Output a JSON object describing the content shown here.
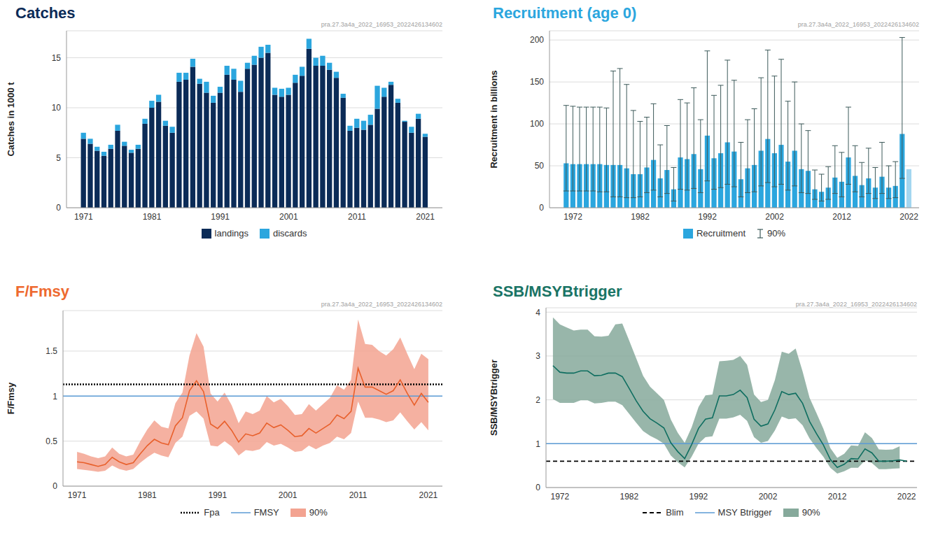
{
  "chart_data": [
    {
      "type": "bar",
      "title": "Catches",
      "subtitle": "pra.27.3a4a_2022_16953_2022426134602",
      "stacked": true,
      "grid": true,
      "legend": "bottom",
      "x": [
        1971,
        1972,
        1973,
        1974,
        1975,
        1976,
        1977,
        1978,
        1979,
        1980,
        1981,
        1982,
        1983,
        1984,
        1985,
        1986,
        1987,
        1988,
        1989,
        1990,
        1991,
        1992,
        1993,
        1994,
        1995,
        1996,
        1997,
        1998,
        1999,
        2000,
        2001,
        2002,
        2003,
        2004,
        2005,
        2006,
        2007,
        2008,
        2009,
        2010,
        2011,
        2012,
        2013,
        2014,
        2015,
        2016,
        2017,
        2018,
        2019,
        2020,
        2021
      ],
      "xlim": [
        1968.5,
        2023.5
      ],
      "xticks": [
        1971,
        1981,
        1991,
        2001,
        2011,
        2021
      ],
      "ylim": [
        0,
        17.7
      ],
      "yticks": [
        0,
        5,
        10,
        15
      ],
      "y_label": "Catches in 1000 t",
      "series": [
        {
          "name": "landings",
          "type": "bar",
          "color": "#0b2b57",
          "values": [
            6.9,
            6.4,
            5.7,
            5.2,
            5.9,
            7.7,
            6.2,
            5.5,
            5.9,
            8.4,
            10.0,
            10.6,
            8.2,
            7.5,
            12.6,
            12.8,
            14.1,
            12.4,
            11.5,
            10.5,
            11.5,
            13.3,
            12.8,
            11.6,
            13.9,
            14.3,
            15.0,
            15.5,
            11.3,
            11.1,
            11.3,
            12.5,
            13.2,
            15.9,
            14.2,
            14.2,
            13.8,
            13.0,
            11.0,
            7.7,
            8.0,
            7.8,
            8.3,
            9.9,
            11.1,
            12.3,
            10.5,
            8.6,
            7.5,
            8.9,
            7.1
          ]
        },
        {
          "name": "discards",
          "type": "bar",
          "color": "#2ba6de",
          "values": [
            0.6,
            0.5,
            0.4,
            0.4,
            0.4,
            0.6,
            0.4,
            0.3,
            0.4,
            0.5,
            0.7,
            0.7,
            0.5,
            0.6,
            0.9,
            0.7,
            0.8,
            0.5,
            1.1,
            0.7,
            0.6,
            0.9,
            1.1,
            1.1,
            0.6,
            0.9,
            1.1,
            0.8,
            0.7,
            0.8,
            0.7,
            0.8,
            0.9,
            1.0,
            0.8,
            1.0,
            0.7,
            0.6,
            0.4,
            0.5,
            0.9,
            0.9,
            1.0,
            2.3,
            0.9,
            0.3,
            0.4,
            0.1,
            0.6,
            0.5,
            0.3
          ]
        }
      ]
    },
    {
      "type": "bar",
      "title": "Recruitment (age 0)",
      "subtitle": "pra.27.3a4a_2022_16953_2022426134602",
      "grid": true,
      "legend": "bottom",
      "x": [
        1971,
        1972,
        1973,
        1974,
        1975,
        1976,
        1977,
        1978,
        1979,
        1980,
        1981,
        1982,
        1983,
        1984,
        1985,
        1986,
        1987,
        1988,
        1989,
        1990,
        1991,
        1992,
        1993,
        1994,
        1995,
        1996,
        1997,
        1998,
        1999,
        2000,
        2001,
        2002,
        2003,
        2004,
        2005,
        2006,
        2007,
        2008,
        2009,
        2010,
        2011,
        2012,
        2013,
        2014,
        2015,
        2016,
        2017,
        2018,
        2019,
        2020,
        2021,
        2022
      ],
      "xlim": [
        1968.5,
        2023.5
      ],
      "xticks": [
        1972,
        1982,
        1992,
        2002,
        2012,
        2022
      ],
      "ylim": [
        0,
        211
      ],
      "yticks": [
        0,
        50,
        100,
        150,
        200
      ],
      "y_label": "Recruitment in billions",
      "series": [
        {
          "name": "Recruitment",
          "type": "bar",
          "color": "#2ba6de",
          "error_name": "90%",
          "colors": [
            "#2ba6de",
            "#2ba6de",
            "#2ba6de",
            "#2ba6de",
            "#2ba6de",
            "#2ba6de",
            "#2ba6de",
            "#2ba6de",
            "#2ba6de",
            "#2ba6de",
            "#2ba6de",
            "#2ba6de",
            "#2ba6de",
            "#2ba6de",
            "#2ba6de",
            "#2ba6de",
            "#2ba6de",
            "#2ba6de",
            "#2ba6de",
            "#2ba6de",
            "#2ba6de",
            "#2ba6de",
            "#2ba6de",
            "#2ba6de",
            "#2ba6de",
            "#2ba6de",
            "#2ba6de",
            "#2ba6de",
            "#2ba6de",
            "#2ba6de",
            "#2ba6de",
            "#2ba6de",
            "#2ba6de",
            "#2ba6de",
            "#2ba6de",
            "#2ba6de",
            "#2ba6de",
            "#2ba6de",
            "#2ba6de",
            "#2ba6de",
            "#2ba6de",
            "#2ba6de",
            "#2ba6de",
            "#2ba6de",
            "#2ba6de",
            "#2ba6de",
            "#2ba6de",
            "#2ba6de",
            "#2ba6de",
            "#2ba6de",
            "#2ba6de",
            "#a3d6f0"
          ],
          "values": [
            53,
            52,
            52,
            52,
            52,
            52,
            51,
            51,
            51,
            47,
            40,
            40,
            48,
            57,
            35,
            45,
            22,
            60,
            58,
            64,
            46,
            86,
            59,
            65,
            78,
            67,
            34,
            47,
            51,
            68,
            82,
            65,
            75,
            55,
            68,
            46,
            44,
            22,
            19,
            24,
            36,
            31,
            60,
            38,
            27,
            35,
            24,
            37,
            24,
            26,
            88,
            46
          ],
          "error_low": [
            20,
            20,
            20,
            20,
            20,
            19,
            19,
            13,
            13,
            12,
            12,
            13,
            18,
            21,
            13,
            17,
            8,
            22,
            21,
            23,
            18,
            32,
            22,
            24,
            28,
            25,
            13,
            18,
            19,
            26,
            30,
            25,
            28,
            21,
            26,
            18,
            17,
            10,
            8,
            10,
            17,
            13,
            28,
            19,
            13,
            17,
            11,
            17,
            11,
            12,
            35,
            null
          ],
          "error_high": [
            122,
            121,
            120,
            120,
            120,
            120,
            119,
            163,
            166,
            147,
            116,
            103,
            108,
            124,
            75,
            98,
            48,
            129,
            125,
            143,
            105,
            187,
            134,
            146,
            176,
            152,
            78,
            105,
            118,
            155,
            188,
            157,
            177,
            127,
            150,
            100,
            92,
            45,
            40,
            49,
            74,
            66,
            120,
            74,
            54,
            71,
            48,
            78,
            50,
            55,
            203,
            null
          ]
        }
      ]
    },
    {
      "type": "line",
      "title": "F/Fmsy",
      "subtitle": "pra.27.3a4a_2022_16953_2022426134602",
      "grid": true,
      "legend": "bottom",
      "x": [
        1971,
        1972,
        1973,
        1974,
        1975,
        1976,
        1977,
        1978,
        1979,
        1980,
        1981,
        1982,
        1983,
        1984,
        1985,
        1986,
        1987,
        1988,
        1989,
        1990,
        1991,
        1992,
        1993,
        1994,
        1995,
        1996,
        1997,
        1998,
        1999,
        2000,
        2001,
        2002,
        2003,
        2004,
        2005,
        2006,
        2007,
        2008,
        2009,
        2010,
        2011,
        2012,
        2013,
        2014,
        2015,
        2016,
        2017,
        2018,
        2019,
        2020,
        2021
      ],
      "xlim": [
        1969,
        2023
      ],
      "xticks": [
        1971,
        1981,
        1991,
        2001,
        2011,
        2021
      ],
      "ylim": [
        0,
        1.95
      ],
      "yticks": [
        0,
        0.5,
        1,
        1.5
      ],
      "y_label": "F/Fmsy",
      "reference_lines": [
        {
          "name": "Fpa",
          "value": 1.13,
          "color": "#000000",
          "line_style": "dotted"
        },
        {
          "name": "FMSY",
          "value": 1,
          "color": "#5b9bd5",
          "line_style": "solid"
        }
      ],
      "series": [
        {
          "type": "line",
          "color": "#e8602c",
          "band_color": "#f3a391",
          "band_name": "90%",
          "values": [
            0.27,
            0.26,
            0.24,
            0.22,
            0.24,
            0.32,
            0.27,
            0.24,
            0.26,
            0.36,
            0.45,
            0.52,
            0.48,
            0.46,
            0.67,
            0.76,
            1.06,
            1.17,
            1.05,
            0.69,
            0.64,
            0.72,
            0.62,
            0.49,
            0.58,
            0.56,
            0.59,
            0.7,
            0.65,
            0.68,
            0.62,
            0.55,
            0.56,
            0.64,
            0.59,
            0.64,
            0.69,
            0.79,
            0.75,
            0.83,
            1.31,
            1.1,
            1.1,
            1.06,
            1.02,
            1.06,
            1.18,
            1.03,
            0.9,
            1.03,
            0.93
          ],
          "band_low": [
            0.19,
            0.18,
            0.17,
            0.16,
            0.17,
            0.23,
            0.19,
            0.17,
            0.19,
            0.26,
            0.32,
            0.37,
            0.34,
            0.32,
            0.48,
            0.55,
            0.78,
            0.83,
            0.75,
            0.45,
            0.44,
            0.5,
            0.44,
            0.34,
            0.4,
            0.39,
            0.41,
            0.49,
            0.45,
            0.47,
            0.43,
            0.38,
            0.39,
            0.45,
            0.41,
            0.45,
            0.48,
            0.55,
            0.52,
            0.59,
            0.94,
            0.76,
            0.76,
            0.74,
            0.71,
            0.73,
            0.82,
            0.72,
            0.63,
            0.71,
            0.62
          ],
          "band_high": [
            0.38,
            0.36,
            0.33,
            0.31,
            0.33,
            0.43,
            0.36,
            0.33,
            0.35,
            0.5,
            0.63,
            0.73,
            0.66,
            0.64,
            0.92,
            1.04,
            1.45,
            1.7,
            1.55,
            1.03,
            0.94,
            1.04,
            0.9,
            0.7,
            0.83,
            0.8,
            0.84,
            1.0,
            0.93,
            0.97,
            0.89,
            0.79,
            0.8,
            0.91,
            0.84,
            0.91,
            0.98,
            1.12,
            1.07,
            1.18,
            1.85,
            1.58,
            1.57,
            1.5,
            1.45,
            1.52,
            1.65,
            1.47,
            1.3,
            1.47,
            1.41
          ]
        }
      ]
    },
    {
      "type": "line",
      "title": "SSB/MSYBtrigger",
      "subtitle": "pra.27.3a4a_2022_16953_2022426134602",
      "grid": true,
      "legend": "bottom",
      "x": [
        1971,
        1972,
        1973,
        1974,
        1975,
        1976,
        1977,
        1978,
        1979,
        1980,
        1981,
        1982,
        1983,
        1984,
        1985,
        1986,
        1987,
        1988,
        1989,
        1990,
        1991,
        1992,
        1993,
        1994,
        1995,
        1996,
        1997,
        1998,
        1999,
        2000,
        2001,
        2002,
        2003,
        2004,
        2005,
        2006,
        2007,
        2008,
        2009,
        2010,
        2011,
        2012,
        2013,
        2014,
        2015,
        2016,
        2017,
        2018,
        2019,
        2020,
        2021,
        2022
      ],
      "xlim": [
        1970,
        2023.5
      ],
      "xticks": [
        1972,
        1982,
        1992,
        2002,
        2012,
        2022
      ],
      "ylim": [
        0,
        4.1
      ],
      "yticks": [
        0,
        1,
        2,
        3,
        4
      ],
      "y_label": "SSB/MSYBtrigger",
      "reference_lines": [
        {
          "name": "Blim",
          "value": 0.6,
          "color": "#000000",
          "line_style": "dashed"
        },
        {
          "name": "MSY Btrigger",
          "value": 1,
          "color": "#5b9bd5",
          "line_style": "solid"
        }
      ],
      "series": [
        {
          "type": "line",
          "color": "#0f6e60",
          "band_color": "#86a99b",
          "band_name": "90%",
          "values": [
            2.78,
            2.63,
            2.61,
            2.61,
            2.66,
            2.66,
            2.55,
            2.56,
            2.61,
            2.61,
            2.53,
            2.26,
            1.98,
            1.74,
            1.57,
            1.47,
            1.36,
            1.02,
            0.82,
            0.66,
            0.98,
            1.35,
            1.56,
            1.59,
            2.09,
            2.09,
            2.12,
            2.22,
            2.05,
            1.56,
            1.4,
            1.45,
            1.77,
            2.19,
            2.12,
            2.15,
            1.92,
            1.51,
            1.23,
            0.97,
            0.64,
            0.46,
            0.53,
            0.66,
            0.65,
            0.88,
            0.79,
            0.6,
            0.6,
            0.61,
            0.63,
            0.6
          ],
          "band_low": [
            2.02,
            1.93,
            1.93,
            1.93,
            1.99,
            1.99,
            1.92,
            1.93,
            1.96,
            1.96,
            1.88,
            1.68,
            1.48,
            1.29,
            1.18,
            1.1,
            1.0,
            0.73,
            0.58,
            0.46,
            0.7,
            1.0,
            1.15,
            1.17,
            1.57,
            1.57,
            1.6,
            1.66,
            1.52,
            1.15,
            1.02,
            1.06,
            1.3,
            1.62,
            1.56,
            1.58,
            1.42,
            1.12,
            0.9,
            0.7,
            0.45,
            0.32,
            0.37,
            0.45,
            0.45,
            0.62,
            0.56,
            0.42,
            0.42,
            0.43,
            0.44,
            null
          ],
          "band_high": [
            3.88,
            3.72,
            3.65,
            3.58,
            3.6,
            3.6,
            3.45,
            3.44,
            3.46,
            3.72,
            3.74,
            3.35,
            2.95,
            2.55,
            2.3,
            2.15,
            2.0,
            1.55,
            1.25,
            1.02,
            1.37,
            1.84,
            2.1,
            2.12,
            2.88,
            2.89,
            2.91,
            3.0,
            2.8,
            2.12,
            1.95,
            2.0,
            2.45,
            3.1,
            3.05,
            3.17,
            2.65,
            2.05,
            1.7,
            1.34,
            0.9,
            0.68,
            0.77,
            0.96,
            0.95,
            1.26,
            1.13,
            0.87,
            0.86,
            0.87,
            0.94,
            null
          ]
        }
      ]
    }
  ]
}
